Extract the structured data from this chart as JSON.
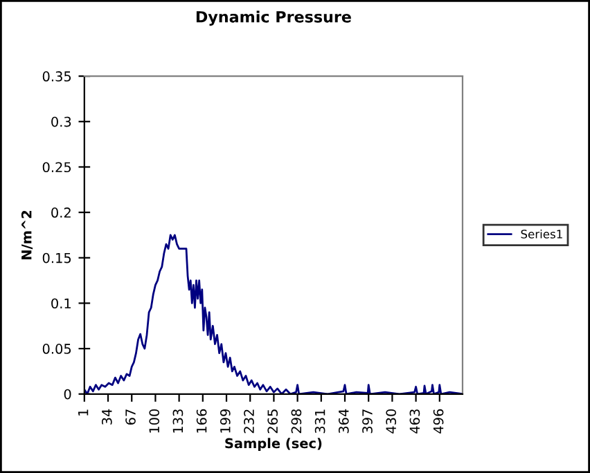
{
  "chart_data": {
    "type": "line",
    "title": "Dynamic Pressure",
    "xlabel": "Sample (sec)",
    "ylabel": "N/m^2",
    "xlim": [
      1,
      528
    ],
    "xticks": [
      1,
      34,
      67,
      100,
      133,
      166,
      199,
      232,
      265,
      298,
      331,
      364,
      397,
      430,
      463,
      496
    ],
    "ylim": [
      0,
      0.35
    ],
    "yticks": [
      0,
      0.05,
      0.1,
      0.15,
      0.2,
      0.25,
      0.3,
      0.35
    ],
    "grid": false,
    "legend": "right",
    "marker": "none",
    "line_style": "solid",
    "series": [
      {
        "name": "Series1",
        "color": "#000080",
        "x": [
          1,
          5,
          9,
          13,
          17,
          21,
          25,
          30,
          35,
          40,
          44,
          48,
          52,
          56,
          60,
          64,
          67,
          70,
          73,
          76,
          79,
          82,
          85,
          88,
          91,
          94,
          97,
          100,
          103,
          106,
          109,
          112,
          115,
          118,
          121,
          124,
          127,
          130,
          133,
          138,
          143,
          145,
          147,
          149,
          151,
          153,
          155,
          157,
          159,
          161,
          163,
          165,
          167,
          169,
          171,
          173,
          175,
          177,
          180,
          183,
          186,
          189,
          192,
          195,
          198,
          201,
          204,
          207,
          210,
          214,
          218,
          222,
          226,
          230,
          234,
          238,
          242,
          246,
          250,
          255,
          260,
          265,
          270,
          276,
          282,
          288,
          296,
          298,
          300,
          320,
          340,
          362,
          364,
          366,
          380,
          396,
          397,
          399,
          420,
          440,
          461,
          463,
          465,
          474,
          475,
          477,
          485,
          486,
          488,
          495,
          496,
          498,
          510,
          528
        ],
        "values": [
          0.005,
          0,
          0.008,
          0.003,
          0.01,
          0.005,
          0.01,
          0.008,
          0.012,
          0.01,
          0.018,
          0.012,
          0.02,
          0.015,
          0.022,
          0.02,
          0.03,
          0.035,
          0.045,
          0.06,
          0.066,
          0.055,
          0.05,
          0.065,
          0.09,
          0.095,
          0.11,
          0.12,
          0.125,
          0.135,
          0.14,
          0.155,
          0.165,
          0.16,
          0.175,
          0.17,
          0.175,
          0.165,
          0.16,
          0.16,
          0.16,
          0.13,
          0.115,
          0.125,
          0.1,
          0.12,
          0.095,
          0.125,
          0.105,
          0.125,
          0.1,
          0.115,
          0.07,
          0.095,
          0.085,
          0.065,
          0.09,
          0.06,
          0.075,
          0.055,
          0.065,
          0.045,
          0.055,
          0.035,
          0.045,
          0.03,
          0.04,
          0.025,
          0.03,
          0.02,
          0.025,
          0.015,
          0.02,
          0.01,
          0.015,
          0.008,
          0.012,
          0.005,
          0.01,
          0.003,
          0.008,
          0.002,
          0.006,
          0,
          0.005,
          0,
          0.002,
          0.01,
          0,
          0.002,
          0,
          0.003,
          0.01,
          0,
          0.002,
          0.001,
          0.01,
          0,
          0.002,
          0,
          0.002,
          0.008,
          0,
          0.001,
          0.009,
          0,
          0.003,
          0.01,
          0,
          0.002,
          0.01,
          0,
          0.002,
          0
        ]
      }
    ]
  }
}
